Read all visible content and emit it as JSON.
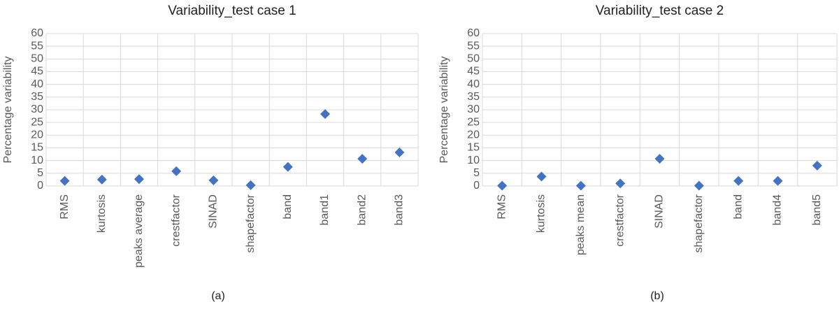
{
  "chart_data": [
    {
      "type": "scatter",
      "title": "Variability_test case 1",
      "y_label": "Percentage variability",
      "caption": "(a)",
      "categories": [
        "RMS",
        "kurtosis",
        "peaks average",
        "crestfactor",
        "SINAD",
        "shapefactor",
        "band",
        "band1",
        "band2",
        "band3"
      ],
      "values": [
        2,
        2.5,
        2.7,
        5.8,
        2.2,
        0.3,
        7.5,
        28.3,
        10.7,
        13.2
      ],
      "color": "#4472c4",
      "ylim": [
        0,
        60
      ],
      "yticks": [
        0,
        5,
        10,
        15,
        20,
        25,
        30,
        35,
        40,
        45,
        50,
        55,
        60
      ],
      "grid": true
    },
    {
      "type": "scatter",
      "title": "Variability_test case 2",
      "y_label": "Percentage variability",
      "caption": "(b)",
      "categories": [
        "RMS",
        "kurtosis",
        "peaks mean",
        "crestfactor",
        "SINAD",
        "shapefactor",
        "band",
        "band4",
        "band5"
      ],
      "values": [
        0.1,
        3.7,
        0.1,
        1,
        10.7,
        0.1,
        2,
        2,
        8
      ],
      "color": "#4472c4",
      "ylim": [
        0,
        60
      ],
      "yticks": [
        0,
        5,
        10,
        15,
        20,
        25,
        30,
        35,
        40,
        45,
        50,
        55,
        60
      ],
      "grid": true
    }
  ]
}
